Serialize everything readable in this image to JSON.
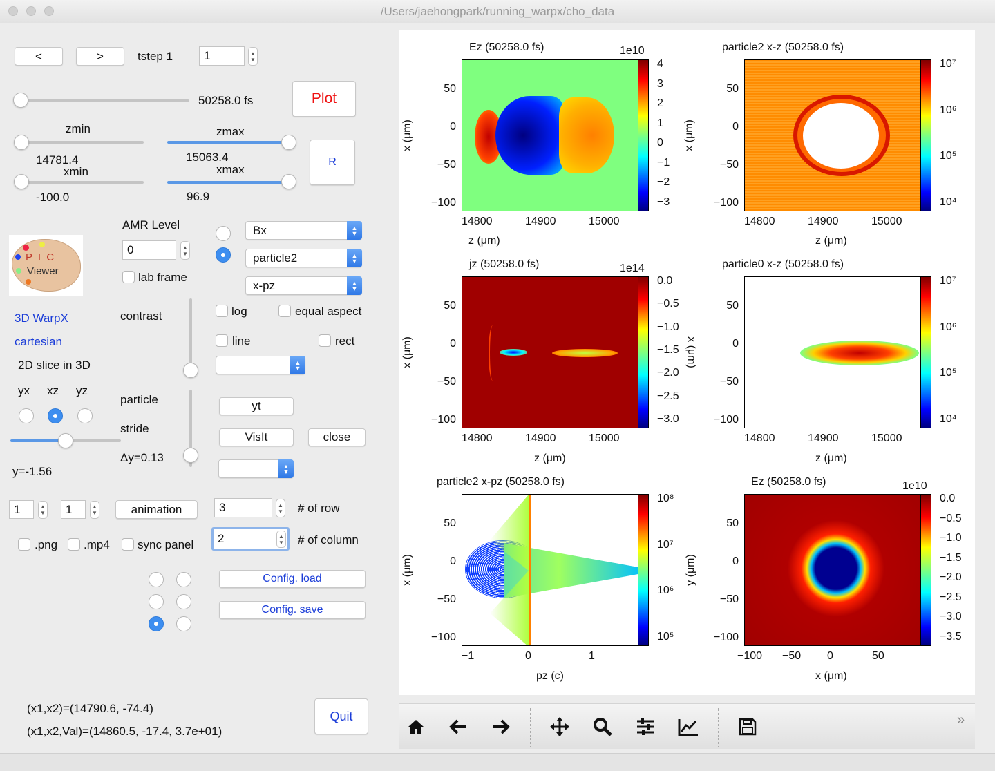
{
  "window": {
    "title": "/Users/jaehongpark/running_warpx/cho_data"
  },
  "nav": {
    "prev_label": "<",
    "next_label": ">",
    "tstep_label": "tstep 1",
    "tstep_value": "1"
  },
  "time": {
    "value_label": "50258.0 fs"
  },
  "plot_button": {
    "label": "Plot",
    "color": "#ee1111"
  },
  "range": {
    "zmin_label": "zmin",
    "zmin_value": "14781.4",
    "zmax_label": "zmax",
    "zmax_value": "15063.4",
    "xmin_label": "xmin",
    "xmin_value": "-100.0",
    "xmax_label": "xmax",
    "xmax_value": "96.9",
    "reset_label": "R"
  },
  "amr": {
    "label": "AMR Level",
    "value": "0",
    "lab_frame_label": "lab frame"
  },
  "logo": {
    "line1": "P I C",
    "line2": "Viewer"
  },
  "info": {
    "sim": "3D WarpX",
    "geometry": "cartesian",
    "slice": "2D slice in 3D"
  },
  "slice_axes": {
    "options": [
      "yx",
      "xz",
      "yz"
    ],
    "selected": "xz"
  },
  "y_value": "y=-1.56",
  "contrast_label": "contrast",
  "particle_label": "particle",
  "stride_label": "stride",
  "dy_label": "Δy=0.13",
  "selectors": {
    "field": "Bx",
    "species": "particle2",
    "phase": "x-pz",
    "extra1": "",
    "extra2": ""
  },
  "options": {
    "log": "log",
    "equal_aspect": "equal aspect",
    "line": "line",
    "rect": "rect"
  },
  "actions": {
    "yt": "yt",
    "visit": "VisIt",
    "close": "close",
    "animation": "animation"
  },
  "anim": {
    "start": "1",
    "end": "1"
  },
  "layout": {
    "rows_value": "3",
    "rows_label": "# of row",
    "cols_value": "2",
    "cols_label": "# of column"
  },
  "exports": {
    "png": ".png",
    "mp4": ".mp4",
    "sync": "sync panel"
  },
  "config": {
    "load": "Config. load",
    "save": "Config. save"
  },
  "coords": {
    "line1": "(x1,x2)=(14790.6, -74.4)",
    "line2": "(x1,x2,Val)=(14860.5, -17.4, 3.7e+01)"
  },
  "quit_label": "Quit",
  "colormap": [
    "#00007f",
    "#0000ff",
    "#00ffff",
    "#7fff7f",
    "#ffff00",
    "#ff0000",
    "#7f0000"
  ],
  "panels": [
    {
      "title": "Ez  (50258.0 fs)",
      "scale": "1e10",
      "xlabel": "z (μm)",
      "ylabel": "x (μm)",
      "xticks": [
        "14800",
        "14900",
        "15000"
      ],
      "yticks": [
        "50",
        "0",
        "−50",
        "−100"
      ],
      "cticks": [
        "4",
        "3",
        "2",
        "1",
        "0",
        "−1",
        "−2",
        "−3"
      ]
    },
    {
      "title": "particle2 x-z  (50258.0 fs)",
      "scale": "",
      "xlabel": "z (μm)",
      "ylabel": "x (μm)",
      "xticks": [
        "14800",
        "14900",
        "15000"
      ],
      "yticks": [
        "50",
        "0",
        "−50",
        "−100"
      ],
      "cticks": [
        "10⁷",
        "10⁶",
        "10⁵",
        "10⁴"
      ]
    },
    {
      "title": "jz  (50258.0 fs)",
      "scale": "1e14",
      "xlabel": "z (μm)",
      "ylabel": "x (μm)",
      "xticks": [
        "14800",
        "14900",
        "15000"
      ],
      "yticks": [
        "50",
        "0",
        "−50",
        "−100"
      ],
      "cticks": [
        "0.0",
        "−0.5",
        "−1.0",
        "−1.5",
        "−2.0",
        "−2.5",
        "−3.0"
      ]
    },
    {
      "title": "particle0 x-z  (50258.0 fs)",
      "scale": "",
      "xlabel": "z (μm)",
      "ylabel": "x (μm)",
      "xticks": [
        "14800",
        "14900",
        "15000"
      ],
      "yticks": [
        "50",
        "0",
        "−50",
        "−100"
      ],
      "cticks": [
        "10⁷",
        "10⁶",
        "10⁵",
        "10⁴"
      ]
    },
    {
      "title": "particle2 x-pz  (50258.0 fs)",
      "scale": "",
      "xlabel": "pz (c)",
      "ylabel": "x (μm)",
      "xticks": [
        "−1",
        "0",
        "1"
      ],
      "yticks": [
        "50",
        "0",
        "−50",
        "−100"
      ],
      "cticks": [
        "10⁸",
        "10⁷",
        "10⁶",
        "10⁵"
      ]
    },
    {
      "title": "Ez  (50258.0 fs)",
      "scale": "1e10",
      "xlabel": "x (μm)",
      "ylabel": "y (μm)",
      "xticks": [
        "−100",
        "−50",
        "0",
        "50"
      ],
      "yticks": [
        "50",
        "0",
        "−50",
        "−100"
      ],
      "cticks": [
        "0.0",
        "−0.5",
        "−1.0",
        "−1.5",
        "−2.0",
        "−2.5",
        "−3.0",
        "−3.5"
      ]
    }
  ],
  "toolbar": {
    "icons": [
      "home-icon",
      "back-icon",
      "forward-icon",
      "pan-icon",
      "zoom-icon",
      "subplots-icon",
      "customize-icon",
      "save-icon"
    ],
    "overflow": "»"
  }
}
